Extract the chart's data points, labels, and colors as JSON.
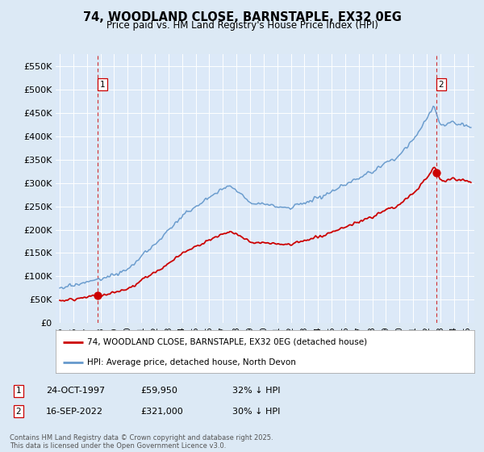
{
  "title": "74, WOODLAND CLOSE, BARNSTAPLE, EX32 0EG",
  "subtitle": "Price paid vs. HM Land Registry's House Price Index (HPI)",
  "ylabel_ticks": [
    0,
    50000,
    100000,
    150000,
    200000,
    250000,
    300000,
    350000,
    400000,
    450000,
    500000,
    550000
  ],
  "ylabel_labels": [
    "£0",
    "£50K",
    "£100K",
    "£150K",
    "£200K",
    "£250K",
    "£300K",
    "£350K",
    "£400K",
    "£450K",
    "£500K",
    "£550K"
  ],
  "ylim": [
    0,
    575000
  ],
  "xlim_start": 1994.7,
  "xlim_end": 2025.5,
  "sale1_x": 1997.81,
  "sale1_y": 59950,
  "sale2_x": 2022.71,
  "sale2_y": 321000,
  "sale_color": "#cc0000",
  "hpi_color": "#6699cc",
  "legend_label1": "74, WOODLAND CLOSE, BARNSTAPLE, EX32 0EG (detached house)",
  "legend_label2": "HPI: Average price, detached house, North Devon",
  "note1_label": "1",
  "note1_date": "24-OCT-1997",
  "note1_price": "£59,950",
  "note1_hpi": "32% ↓ HPI",
  "note2_label": "2",
  "note2_date": "16-SEP-2022",
  "note2_price": "£321,000",
  "note2_hpi": "30% ↓ HPI",
  "footnote": "Contains HM Land Registry data © Crown copyright and database right 2025.\nThis data is licensed under the Open Government Licence v3.0.",
  "bg_color": "#dce9f5",
  "plot_bg_color": "#dce9f8"
}
